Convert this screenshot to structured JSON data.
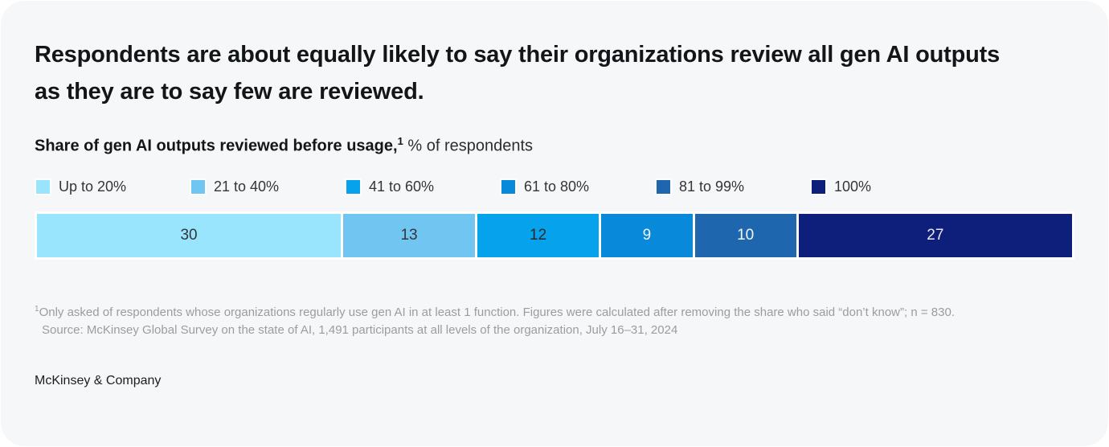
{
  "card": {
    "title": "Respondents are about equally likely to say their organizations review all gen AI outputs as they are to say few are reviewed.",
    "subtitle_bold": "Share of gen AI outputs reviewed before usage,",
    "subtitle_sup": "1",
    "subtitle_rest": " % of respondents",
    "footnote_sup": "1",
    "footnote_text": "Only asked of respondents whose organizations regularly use gen AI in at least 1 function. Figures were calculated after removing the share who said “don’t know”; n = 830.",
    "source_text": "Source: McKinsey Global Survey on the state of AI, 1,491 participants at all levels of the organization, July 16–31, 2024",
    "footer_logo": "McKinsey & Company"
  },
  "chart_data": {
    "type": "bar",
    "variant": "horizontal-stacked-single",
    "title": "Share of gen AI outputs reviewed before usage, % of respondents",
    "categories": [
      "Up to 20%",
      "21 to 40%",
      "41 to 60%",
      "61 to 80%",
      "81 to 99%",
      "100%"
    ],
    "values": [
      30,
      13,
      12,
      9,
      10,
      27
    ],
    "unit": "% of respondents",
    "segment_colors": [
      "#99E5FE",
      "#71C5F1",
      "#06A3EC",
      "#0989D9",
      "#1E67AE",
      "#0E1F7B"
    ],
    "segment_label_colors": [
      "#333639",
      "#333639",
      "#26292c",
      "#F2F5F7",
      "#F2F5F7",
      "#E6E9F2"
    ],
    "legend_position": "top",
    "axis": "none",
    "grid": false,
    "background_color": "#f6f7f8",
    "separator_color": "#ffffff"
  }
}
